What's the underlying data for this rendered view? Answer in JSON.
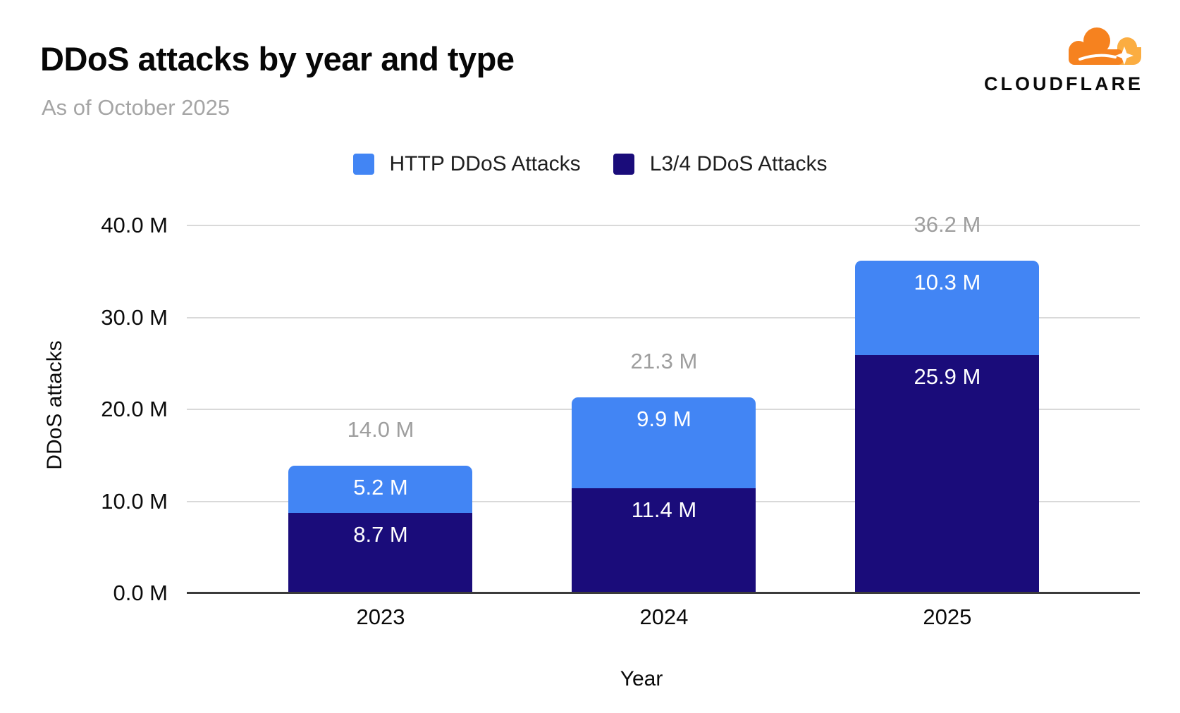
{
  "header": {
    "title": "DDoS attacks by year and type",
    "subtitle": "As of October 2025",
    "brand_wordmark": "CLOUDFLARE",
    "brand_colors": {
      "cloud_orange": "#F6821F",
      "cloud_light_orange": "#FBAD41"
    }
  },
  "legend": {
    "items": [
      {
        "label": "HTTP DDoS Attacks",
        "color": "#4285F4"
      },
      {
        "label": "L3/4 DDoS Attacks",
        "color": "#1A0C7A"
      }
    ]
  },
  "chart_data": {
    "type": "bar",
    "stacked": true,
    "title": "DDoS attacks by year and type",
    "subtitle": "As of October 2025",
    "xlabel": "Year",
    "ylabel": "DDoS attacks",
    "categories": [
      "2023",
      "2024",
      "2025"
    ],
    "series": [
      {
        "name": "HTTP DDoS Attacks",
        "color": "#4285F4",
        "label_color": "#FFFFFF",
        "values": [
          5.2,
          9.9,
          10.3
        ],
        "value_labels": [
          "5.2 M",
          "9.9 M",
          "10.3 M"
        ]
      },
      {
        "name": "L3/4 DDoS Attacks",
        "color": "#1A0C7A",
        "label_color": "#FFFFFF",
        "values": [
          8.7,
          11.4,
          25.9
        ],
        "value_labels": [
          "8.7 M",
          "11.4 M",
          "25.9 M"
        ]
      }
    ],
    "stack_order_top_to_bottom": [
      "HTTP DDoS Attacks",
      "L3/4 DDoS Attacks"
    ],
    "totals": [
      14.0,
      21.3,
      36.2
    ],
    "total_labels": [
      "14.0 M",
      "21.3 M",
      "36.2 M"
    ],
    "total_label_color": "#9E9E9E",
    "ylim": [
      0,
      40
    ],
    "yticks": [
      0,
      10,
      20,
      30,
      40
    ],
    "ytick_labels": [
      "0.0 M",
      "10.0 M",
      "20.0 M",
      "30.0 M",
      "40.0 M"
    ],
    "grid": true,
    "gridline_color": "#D9D9D9",
    "axis_line_color": "#3B3B3B",
    "legend_position": "top"
  }
}
